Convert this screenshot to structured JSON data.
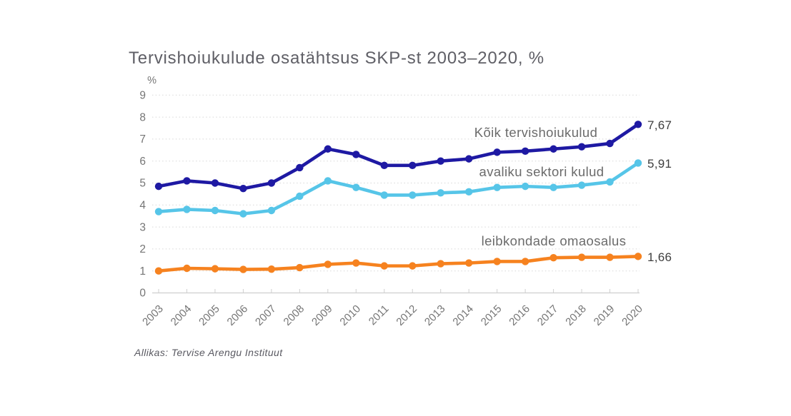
{
  "title": "Tervishoiukulude osatähtsus SKP-st 2003–2020, %",
  "source": "Allikas: Tervise Arengu Instituut",
  "y_axis": {
    "unit": "%",
    "ticks": [
      0,
      1,
      2,
      3,
      4,
      5,
      6,
      7,
      8,
      9
    ]
  },
  "colors": {
    "total_line": "#1e19a3",
    "public_line": "#56c5e8",
    "household_line": "#f6821f",
    "grid": "#d7d7d7",
    "axis": "#cfcfcf",
    "tick_text": "#757575",
    "title_text": "#5f5f66",
    "series_label_text": "#6b6b6b",
    "value_label_text": "#3e3e3e"
  },
  "chart_data": {
    "type": "line",
    "title": "Tervishoiukulude osatähtsus SKP-st 2003–2020, %",
    "xlabel": "",
    "ylabel": "%",
    "x": [
      2003,
      2004,
      2005,
      2006,
      2007,
      2008,
      2009,
      2010,
      2011,
      2012,
      2013,
      2014,
      2015,
      2016,
      2017,
      2018,
      2019,
      2020
    ],
    "ylim": [
      0,
      9
    ],
    "y_ticks": [
      0,
      1,
      2,
      3,
      4,
      5,
      6,
      7,
      8,
      9
    ],
    "grid": "horizontal dotted",
    "legend_position": "inline labels above lines",
    "series": [
      {
        "name": "Kõik tervishoiukulud",
        "color": "#1e19a3",
        "end_label": "7,67",
        "values": [
          4.85,
          5.1,
          5.0,
          4.75,
          5.0,
          5.7,
          6.55,
          6.3,
          5.8,
          5.8,
          6.0,
          6.1,
          6.4,
          6.45,
          6.55,
          6.65,
          6.8,
          7.67
        ]
      },
      {
        "name": "avaliku sektori kulud",
        "color": "#56c5e8",
        "end_label": "5,91",
        "values": [
          3.7,
          3.8,
          3.75,
          3.6,
          3.75,
          4.4,
          5.1,
          4.8,
          4.45,
          4.45,
          4.55,
          4.6,
          4.8,
          4.85,
          4.8,
          4.9,
          5.05,
          5.91
        ]
      },
      {
        "name": "leibkondade omaosalus",
        "color": "#f6821f",
        "end_label": "1,66",
        "values": [
          1.0,
          1.12,
          1.1,
          1.07,
          1.08,
          1.15,
          1.3,
          1.36,
          1.23,
          1.23,
          1.33,
          1.36,
          1.43,
          1.43,
          1.6,
          1.62,
          1.62,
          1.66
        ]
      }
    ]
  }
}
